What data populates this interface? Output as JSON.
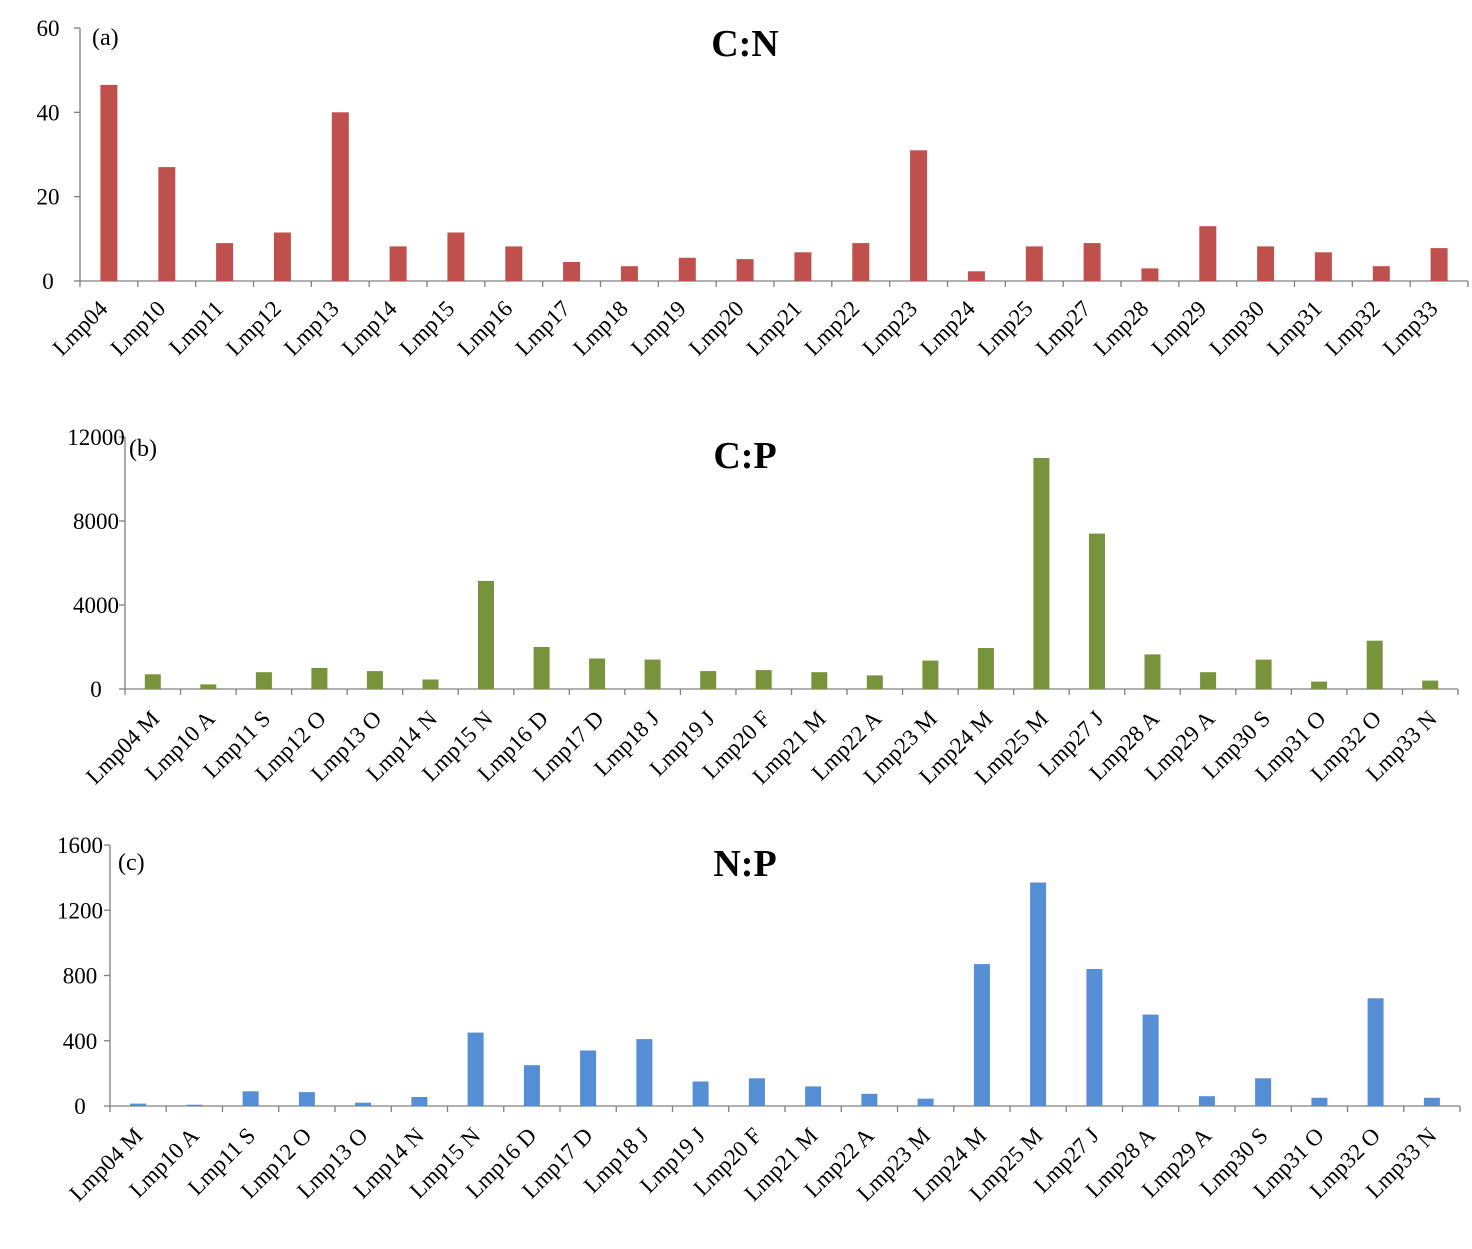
{
  "chart_data": [
    {
      "type": "bar",
      "panel_label": "(a)",
      "title": "C:N",
      "xlabel": "",
      "ylabel": "",
      "ylim": [
        0,
        60
      ],
      "yticks": [
        "0",
        "20",
        "40",
        "60"
      ],
      "grid": false,
      "color": "#c0504d",
      "categories": [
        "Lmp04",
        "Lmp10",
        "Lmp11",
        "Lmp12",
        "Lmp13",
        "Lmp14",
        "Lmp15",
        "Lmp16",
        "Lmp17",
        "Lmp18",
        "Lmp19",
        "Lmp20",
        "Lmp21",
        "Lmp22",
        "Lmp23",
        "Lmp24",
        "Lmp25",
        "Lmp27",
        "Lmp28",
        "Lmp29",
        "Lmp30",
        "Lmp31",
        "Lmp32",
        "Lmp33"
      ],
      "values": [
        46.5,
        27,
        9,
        11.5,
        40,
        8.2,
        11.5,
        8.2,
        4.5,
        3.5,
        5.5,
        5.2,
        6.8,
        9,
        31,
        2.3,
        8.2,
        9,
        3,
        13,
        8.2,
        6.8,
        3.5,
        7.8
      ]
    },
    {
      "type": "bar",
      "panel_label": "(b)",
      "title": "C:P",
      "xlabel": "",
      "ylabel": "",
      "ylim": [
        0,
        12000
      ],
      "yticks": [
        "0",
        "4000",
        "8000",
        "12000"
      ],
      "grid": false,
      "color": "#77933c",
      "categories": [
        "Lmp04 M",
        "Lmp10 A",
        "Lmp11 S",
        "Lmp12 O",
        "Lmp13 O",
        "Lmp14 N",
        "Lmp15 N",
        "Lmp16 D",
        "Lmp17 D",
        "Lmp18 J",
        "Lmp19 J",
        "Lmp20 F",
        "Lmp21 M",
        "Lmp22 A",
        "Lmp23 M",
        "Lmp24 M",
        "Lmp25 M",
        "Lmp27 J",
        "Lmp28 A",
        "Lmp29 A",
        "Lmp30 S",
        "Lmp31 O",
        "Lmp32 O",
        "Lmp33 N"
      ],
      "values": [
        700,
        220,
        800,
        1000,
        850,
        450,
        5150,
        2000,
        1450,
        1400,
        850,
        900,
        800,
        650,
        1350,
        1950,
        11000,
        7400,
        1650,
        800,
        1400,
        350,
        2300,
        400
      ]
    },
    {
      "type": "bar",
      "panel_label": "(c)",
      "title": "N:P",
      "xlabel": "",
      "ylabel": "",
      "ylim": [
        0,
        1600
      ],
      "yticks": [
        "0",
        "400",
        "800",
        "1200",
        "1600"
      ],
      "grid": false,
      "color": "#558ed5",
      "categories": [
        "Lmp04 M",
        "Lmp10 A",
        "Lmp11 S",
        "Lmp12 O",
        "Lmp13 O",
        "Lmp14 N",
        "Lmp15 N",
        "Lmp16 D",
        "Lmp17 D",
        "Lmp18 J",
        "Lmp19 J",
        "Lmp20 F",
        "Lmp21 M",
        "Lmp22 A",
        "Lmp23 M",
        "Lmp24 M",
        "Lmp25 M",
        "Lmp27 J",
        "Lmp28 A",
        "Lmp29 A",
        "Lmp30 S",
        "Lmp31 O",
        "Lmp32 O",
        "Lmp33 N"
      ],
      "values": [
        15,
        8,
        90,
        85,
        20,
        55,
        450,
        250,
        340,
        410,
        150,
        170,
        120,
        75,
        45,
        870,
        1370,
        840,
        560,
        60,
        170,
        50,
        660,
        50
      ]
    }
  ]
}
